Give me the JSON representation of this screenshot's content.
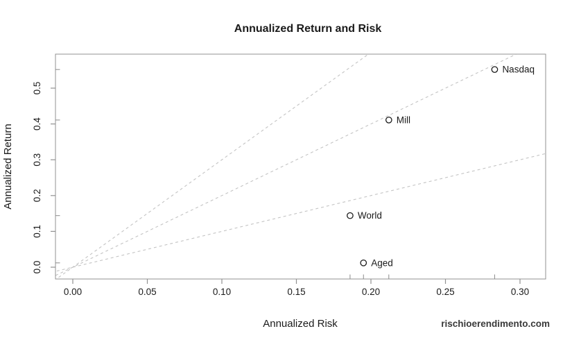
{
  "chart_data": {
    "type": "scatter",
    "title": "Annualized Return and Risk",
    "xlabel": "Annualized Risk",
    "ylabel": "Annualized Return",
    "xlim": [
      -0.0116,
      0.3172
    ],
    "ylim": [
      -0.0329,
      0.595
    ],
    "x_ticks": [
      {
        "value": 0.0,
        "label": "0.00"
      },
      {
        "value": 0.05,
        "label": "0.05"
      },
      {
        "value": 0.1,
        "label": "0.10"
      },
      {
        "value": 0.15,
        "label": "0.15"
      },
      {
        "value": 0.2,
        "label": "0.20"
      },
      {
        "value": 0.25,
        "label": "0.25"
      },
      {
        "value": 0.3,
        "label": "0.30"
      }
    ],
    "y_ticks": [
      {
        "value": 0.0,
        "label": "0.0"
      },
      {
        "value": 0.1,
        "label": "0.1"
      },
      {
        "value": 0.2,
        "label": "0.2"
      },
      {
        "value": 0.3,
        "label": "0.3"
      },
      {
        "value": 0.4,
        "label": "0.4"
      },
      {
        "value": 0.5,
        "label": "0.5"
      }
    ],
    "points": [
      {
        "label": "Nasdaq",
        "risk": 0.283,
        "return": 0.552
      },
      {
        "label": "Mill",
        "risk": 0.212,
        "return": 0.411
      },
      {
        "label": "World",
        "risk": 0.186,
        "return": 0.144
      },
      {
        "label": "Aged",
        "risk": 0.195,
        "return": 0.012
      }
    ],
    "reference_lines": [
      {
        "name": "sharpe-1",
        "slope": 1,
        "intercept": 0,
        "style": "dashed"
      },
      {
        "name": "sharpe-2",
        "slope": 2,
        "intercept": 0,
        "style": "dashed"
      },
      {
        "name": "sharpe-3",
        "slope": 3,
        "intercept": 0,
        "style": "dashed"
      }
    ],
    "rug_marks": true,
    "legend": null,
    "grid": false,
    "colors": {
      "box": "#919191",
      "tick": "#919191",
      "rug": "#8a8a8a",
      "reference_line": "#c3c3c3",
      "point_stroke": "#1a1a1a",
      "point_fill": "#ffffff",
      "text": "#1a1a1a"
    }
  },
  "watermark": "rischioerendimento.com"
}
